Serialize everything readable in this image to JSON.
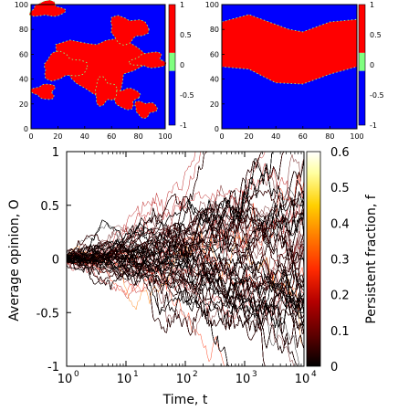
{
  "chart_data": [
    {
      "type": "heatmap",
      "panel": "top-left",
      "xlim": [
        0,
        100
      ],
      "ylim": [
        0,
        100
      ],
      "x_ticks": [
        "0",
        "20",
        "40",
        "60",
        "80",
        "100"
      ],
      "y_ticks": [
        "0",
        "20",
        "40",
        "60",
        "80",
        "100"
      ],
      "colorbar": {
        "range": [
          -1,
          1
        ],
        "ticks": [
          "1",
          "0.5",
          "0",
          "-0.5",
          "-1"
        ],
        "colors": [
          "#0000ff",
          "#80ff80",
          "#ff0000"
        ]
      },
      "states": {
        "plus": "#ff0000",
        "minus": "#0000ff",
        "interface": "#80ff80"
      },
      "red_regions": [
        {
          "shape": "blob",
          "cx": 52,
          "cy": 52,
          "rx": 30,
          "ry": 22
        },
        {
          "shape": "blob",
          "cx": 72,
          "cy": 80,
          "rx": 14,
          "ry": 10
        },
        {
          "shape": "blob",
          "cx": 24,
          "cy": 50,
          "rx": 16,
          "ry": 10
        },
        {
          "shape": "blob",
          "cx": 12,
          "cy": 96,
          "rx": 12,
          "ry": 6
        },
        {
          "shape": "blob",
          "cx": 88,
          "cy": 55,
          "rx": 12,
          "ry": 6
        },
        {
          "shape": "blob",
          "cx": 10,
          "cy": 30,
          "rx": 8,
          "ry": 6
        },
        {
          "shape": "blob",
          "cx": 70,
          "cy": 25,
          "rx": 10,
          "ry": 8
        },
        {
          "shape": "blob",
          "cx": 85,
          "cy": 16,
          "rx": 8,
          "ry": 6
        },
        {
          "shape": "blob",
          "cx": 55,
          "cy": 30,
          "rx": 8,
          "ry": 10
        }
      ]
    },
    {
      "type": "heatmap",
      "panel": "top-right",
      "xlim": [
        0,
        100
      ],
      "ylim": [
        0,
        100
      ],
      "x_ticks": [
        "0",
        "20",
        "40",
        "60",
        "80",
        "100"
      ],
      "y_ticks": [
        "0",
        "20",
        "40",
        "60",
        "80",
        "100"
      ],
      "colorbar": {
        "range": [
          -1,
          1
        ],
        "ticks": [
          "1",
          "0.5",
          "0",
          "-0.5",
          "-1"
        ],
        "colors": [
          "#0000ff",
          "#80ff80",
          "#ff0000"
        ]
      },
      "band": {
        "lower_boundary": [
          [
            0,
            50
          ],
          [
            20,
            48
          ],
          [
            40,
            37
          ],
          [
            60,
            36
          ],
          [
            80,
            44
          ],
          [
            100,
            50
          ]
        ],
        "upper_boundary": [
          [
            0,
            86
          ],
          [
            20,
            92
          ],
          [
            40,
            84
          ],
          [
            50,
            80
          ],
          [
            60,
            78
          ],
          [
            80,
            86
          ],
          [
            100,
            88
          ]
        ]
      }
    },
    {
      "type": "line",
      "panel": "bottom",
      "xlabel": "Time, t",
      "ylabel": "Average opinion, O",
      "xscale": "log",
      "xlim": [
        1,
        10000
      ],
      "ylim": [
        -1,
        1
      ],
      "x_ticks": [
        {
          "base": "10",
          "exp": "0"
        },
        {
          "base": "10",
          "exp": "1"
        },
        {
          "base": "10",
          "exp": "2"
        },
        {
          "base": "10",
          "exp": "3"
        },
        {
          "base": "10",
          "exp": "4"
        }
      ],
      "y_ticks": [
        "1",
        "0.5",
        "0",
        "-0.5",
        "-1"
      ],
      "colorbar": {
        "label": "Persistent fraction, f",
        "range": [
          0,
          0.6
        ],
        "ticks": [
          "0.6",
          "0.5",
          "0.4",
          "0.3",
          "0.2",
          "0.1",
          "0"
        ],
        "colormap": [
          "#000000",
          "#5a0000",
          "#b30000",
          "#ff2a00",
          "#ff7a00",
          "#ffd000",
          "#ffffa0",
          "#ffffff"
        ]
      },
      "envelope": {
        "description": "many trajectories starting at O = 0 that spread with time, saturating at +/-1",
        "spread": [
          {
            "t": 1,
            "halfwidth": 0.05
          },
          {
            "t": 10,
            "halfwidth": 0.3
          },
          {
            "t": 100,
            "halfwidth": 0.85
          },
          {
            "t": 1000,
            "halfwidth": 1.0
          },
          {
            "t": 10000,
            "halfwidth": 1.0
          }
        ]
      },
      "n_trajectories": 320
    }
  ]
}
